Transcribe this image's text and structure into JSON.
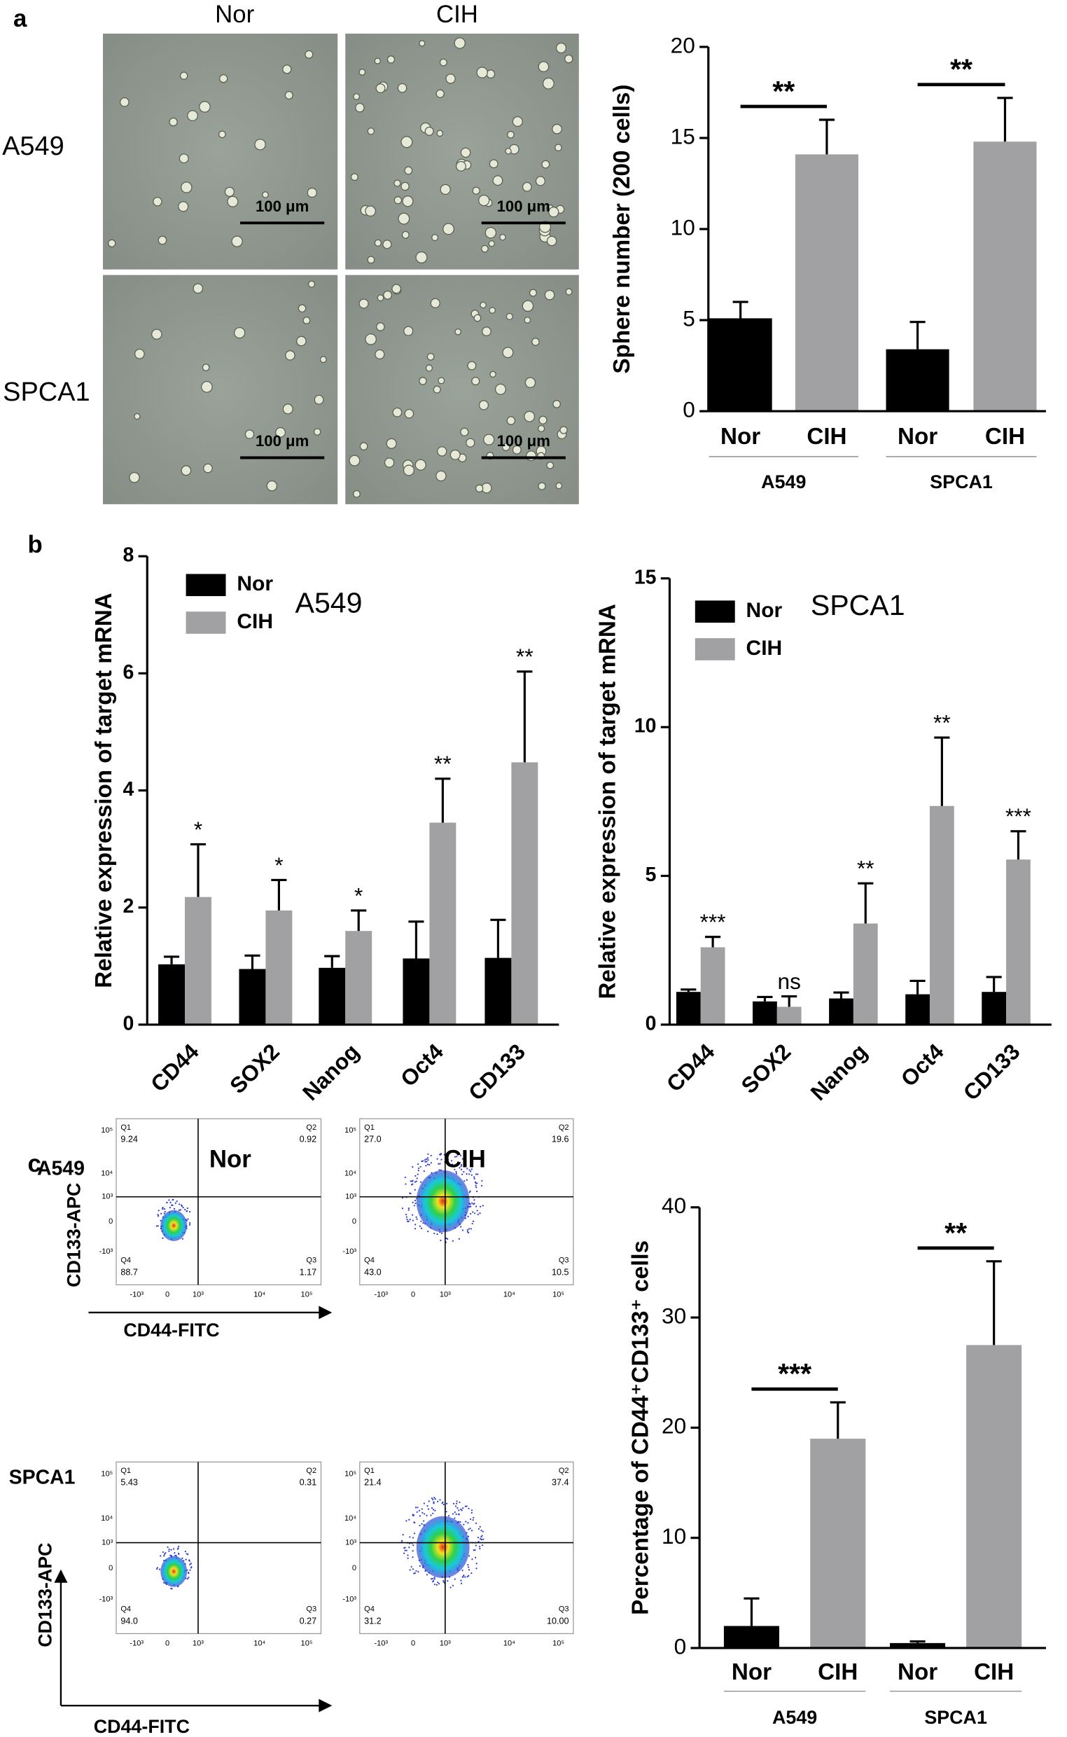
{
  "chart_data": [
    {
      "type": "bar",
      "ylabel": "Sphere number (200 cells)",
      "categories": [
        "Nor",
        "CIH",
        "Nor",
        "CIH"
      ],
      "groups": [
        "A549",
        "SPCA1"
      ],
      "values": [
        5.1,
        14.1,
        3.4,
        14.8
      ],
      "errors": [
        0.9,
        1.9,
        1.5,
        2.4
      ],
      "colors": [
        "#000000",
        "#a1a1a4",
        "#000000",
        "#a1a1a4"
      ],
      "annotations": [
        "**",
        "**"
      ],
      "ylim": [
        0,
        20
      ],
      "yticks": [
        0,
        5,
        10,
        15,
        20
      ]
    },
    {
      "type": "grouped_bar",
      "title": "A549",
      "ylabel": "Relative expression of target mRNA",
      "categories": [
        "CD44",
        "SOX2",
        "Nanog",
        "Oct4",
        "CD133"
      ],
      "series": [
        {
          "name": "Nor",
          "color": "#000000",
          "values": [
            1.03,
            0.95,
            0.97,
            1.13,
            1.14
          ],
          "errors": [
            0.13,
            0.23,
            0.2,
            0.63,
            0.65
          ]
        },
        {
          "name": "CIH",
          "color": "#a1a1a4",
          "values": [
            2.18,
            1.95,
            1.6,
            3.45,
            4.48
          ],
          "errors": [
            0.9,
            0.52,
            0.35,
            0.75,
            1.55
          ]
        }
      ],
      "annotations": [
        "*",
        "*",
        "*",
        "**",
        "**"
      ],
      "legend": "upper left",
      "ylim": [
        0,
        8
      ],
      "yticks": [
        0,
        2,
        4,
        6,
        8
      ]
    },
    {
      "type": "grouped_bar",
      "title": "SPCA1",
      "ylabel": "Relative expression of target mRNA",
      "categories": [
        "CD44",
        "SOX2",
        "Nanog",
        "Oct4",
        "CD133"
      ],
      "series": [
        {
          "name": "Nor",
          "color": "#000000",
          "values": [
            1.1,
            0.78,
            0.88,
            1.02,
            1.1
          ],
          "errors": [
            0.08,
            0.15,
            0.2,
            0.45,
            0.5
          ]
        },
        {
          "name": "CIH",
          "color": "#a1a1a4",
          "values": [
            2.6,
            0.6,
            3.4,
            7.35,
            5.55
          ],
          "errors": [
            0.35,
            0.35,
            1.35,
            2.3,
            0.95
          ]
        }
      ],
      "annotations": [
        "***",
        "ns",
        "**",
        "**",
        "***"
      ],
      "legend": "upper left",
      "ylim": [
        0,
        15
      ],
      "yticks": [
        0,
        5,
        10,
        15
      ]
    },
    {
      "type": "bar",
      "ylabel": "Percentage of CD44⁺CD133⁺ cells",
      "categories": [
        "Nor",
        "CIH",
        "Nor",
        "CIH"
      ],
      "groups": [
        "A549",
        "SPCA1"
      ],
      "values": [
        2.0,
        19.0,
        0.45,
        27.5
      ],
      "errors": [
        2.5,
        3.3,
        0.15,
        7.6
      ],
      "colors": [
        "#000000",
        "#a1a1a4",
        "#000000",
        "#a1a1a4"
      ],
      "annotations": [
        "***",
        "**"
      ],
      "ylim": [
        0,
        40
      ],
      "yticks": [
        0,
        10,
        20,
        30,
        40
      ]
    }
  ],
  "figure": {
    "panel_labels": [
      "a",
      "b",
      "c"
    ],
    "micrographs": {
      "columns": [
        "Nor",
        "CIH"
      ],
      "rows": [
        "A549",
        "SPCA1"
      ],
      "scale_bar": "100 μm"
    },
    "flow": {
      "columns": [
        "Nor",
        "CIH"
      ],
      "rows": [
        "A549",
        "SPCA1"
      ],
      "y_axis": "CD133-APC",
      "x_axis": "CD44-FITC",
      "quadrants": [
        "Q1",
        "Q2",
        "Q3",
        "Q4"
      ],
      "yticks": [
        "10⁵",
        "10⁴",
        "10³",
        "0",
        "-10³"
      ],
      "xticks": [
        "-10³",
        "0",
        "10³",
        "10⁴",
        "10⁵"
      ],
      "plots": [
        [
          "9.24",
          "0.92",
          "1.17",
          "88.7"
        ],
        [
          "27.0",
          "19.6",
          "10.5",
          "43.0"
        ],
        [
          "5.43",
          "0.31",
          "0.27",
          "94.0"
        ],
        [
          "21.4",
          "37.4",
          "10.00",
          "31.2"
        ]
      ]
    }
  }
}
